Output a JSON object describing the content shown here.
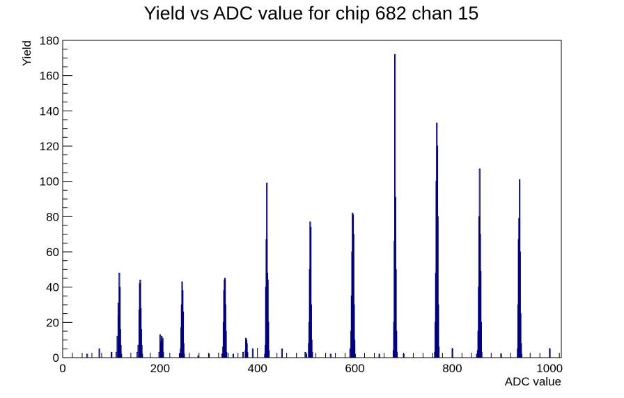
{
  "chart_data": {
    "type": "bar",
    "title": "Yield vs ADC value for chip 682 chan 15",
    "xlabel": "ADC value",
    "ylabel": "Yield",
    "xlim": [
      0,
      1024
    ],
    "ylim": [
      0,
      180
    ],
    "x_ticks": [
      0,
      200,
      400,
      600,
      800,
      1000
    ],
    "y_ticks": [
      0,
      20,
      40,
      60,
      80,
      100,
      120,
      140,
      160,
      180
    ],
    "line_color": "#000080",
    "series": [
      {
        "bins": [
          [
            50,
            2
          ],
          [
            75,
            5
          ],
          [
            100,
            3
          ],
          [
            110,
            3
          ],
          [
            112,
            12
          ],
          [
            114,
            31
          ],
          [
            115,
            24
          ],
          [
            116,
            48
          ],
          [
            117,
            40
          ],
          [
            118,
            16
          ],
          [
            119,
            7
          ],
          [
            120,
            2
          ],
          [
            153,
            3
          ],
          [
            155,
            7
          ],
          [
            157,
            27
          ],
          [
            158,
            42
          ],
          [
            159,
            44
          ],
          [
            160,
            28
          ],
          [
            161,
            16
          ],
          [
            162,
            7
          ],
          [
            163,
            2
          ],
          [
            198,
            3
          ],
          [
            200,
            13
          ],
          [
            201,
            9
          ],
          [
            203,
            12
          ],
          [
            204,
            10
          ],
          [
            205,
            11
          ],
          [
            206,
            3
          ],
          [
            240,
            2
          ],
          [
            242,
            5
          ],
          [
            243,
            17
          ],
          [
            244,
            30
          ],
          [
            245,
            43
          ],
          [
            246,
            38
          ],
          [
            247,
            26
          ],
          [
            248,
            8
          ],
          [
            249,
            2
          ],
          [
            278,
            1
          ],
          [
            300,
            2
          ],
          [
            327,
            2
          ],
          [
            329,
            6
          ],
          [
            330,
            20
          ],
          [
            331,
            38
          ],
          [
            332,
            44
          ],
          [
            333,
            45
          ],
          [
            334,
            30
          ],
          [
            335,
            15
          ],
          [
            336,
            3
          ],
          [
            350,
            2
          ],
          [
            370,
            3
          ],
          [
            375,
            4
          ],
          [
            376,
            11
          ],
          [
            377,
            10
          ],
          [
            378,
            8
          ],
          [
            379,
            3
          ],
          [
            390,
            5
          ],
          [
            415,
            2
          ],
          [
            416,
            7
          ],
          [
            417,
            40
          ],
          [
            418,
            67
          ],
          [
            419,
            99
          ],
          [
            420,
            48
          ],
          [
            421,
            44
          ],
          [
            422,
            20
          ],
          [
            423,
            4
          ],
          [
            450,
            5
          ],
          [
            498,
            3
          ],
          [
            500,
            2
          ],
          [
            505,
            8
          ],
          [
            506,
            20
          ],
          [
            507,
            50
          ],
          [
            508,
            77
          ],
          [
            509,
            74
          ],
          [
            510,
            30
          ],
          [
            511,
            10
          ],
          [
            512,
            3
          ],
          [
            550,
            2
          ],
          [
            590,
            5
          ],
          [
            592,
            15
          ],
          [
            593,
            35
          ],
          [
            594,
            60
          ],
          [
            595,
            82
          ],
          [
            596,
            81
          ],
          [
            597,
            70
          ],
          [
            598,
            30
          ],
          [
            599,
            10
          ],
          [
            600,
            2
          ],
          [
            650,
            2
          ],
          [
            679,
            4
          ],
          [
            680,
            20
          ],
          [
            681,
            66
          ],
          [
            682,
            172
          ],
          [
            683,
            91
          ],
          [
            684,
            50
          ],
          [
            685,
            15
          ],
          [
            686,
            3
          ],
          [
            700,
            2
          ],
          [
            764,
            3
          ],
          [
            765,
            20
          ],
          [
            766,
            48
          ],
          [
            767,
            100
          ],
          [
            768,
            133
          ],
          [
            769,
            120
          ],
          [
            770,
            80
          ],
          [
            771,
            30
          ],
          [
            772,
            6
          ],
          [
            800,
            5
          ],
          [
            850,
            2
          ],
          [
            852,
            4
          ],
          [
            853,
            15
          ],
          [
            854,
            40
          ],
          [
            855,
            80
          ],
          [
            856,
            107
          ],
          [
            857,
            70
          ],
          [
            858,
            49
          ],
          [
            859,
            20
          ],
          [
            860,
            3
          ],
          [
            900,
            2
          ],
          [
            934,
            5
          ],
          [
            935,
            30
          ],
          [
            936,
            67
          ],
          [
            937,
            79
          ],
          [
            938,
            101
          ],
          [
            939,
            60
          ],
          [
            940,
            25
          ],
          [
            941,
            8
          ],
          [
            942,
            2
          ],
          [
            1000,
            5
          ]
        ]
      }
    ]
  }
}
